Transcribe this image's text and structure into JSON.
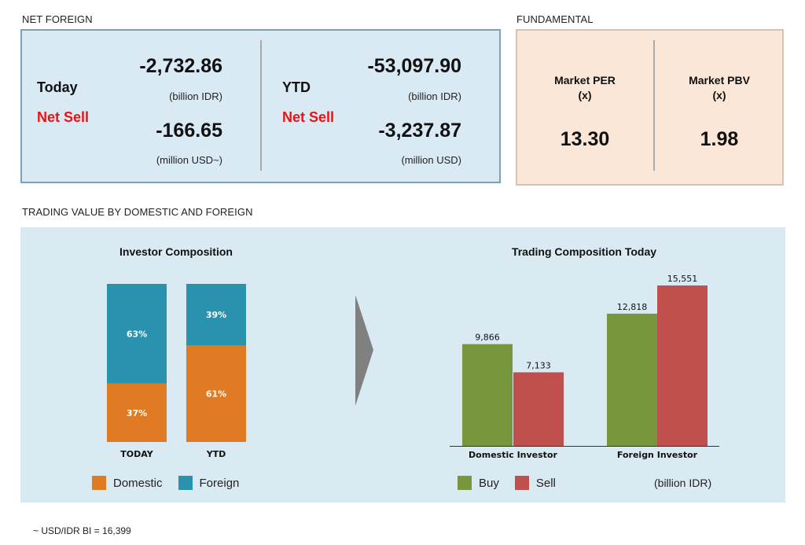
{
  "net_foreign": {
    "title": "NET FOREIGN",
    "today": {
      "label": "Today",
      "status": "Net Sell",
      "idr_value": "-2,732.86",
      "idr_unit": "(billion IDR)",
      "usd_value": "-166.65",
      "usd_unit": "(million USD~)"
    },
    "ytd": {
      "label": "YTD",
      "status": "Net Sell",
      "idr_value": "-53,097.90",
      "idr_unit": "(billion IDR)",
      "usd_value": "-3,237.87",
      "usd_unit": "(million USD)"
    }
  },
  "fundamental": {
    "title": "FUNDAMENTAL",
    "per": {
      "label": "Market PER",
      "unit": "(x)",
      "value": "13.30"
    },
    "pbv": {
      "label": "Market PBV",
      "unit": "(x)",
      "value": "1.98"
    }
  },
  "trading": {
    "title": "TRADING VALUE BY DOMESTIC AND FOREIGN",
    "unit_note": "(billion IDR)"
  },
  "footnote": "~ USD/IDR BI = 16,399",
  "colors": {
    "domestic": "#e07b24",
    "foreign": "#2b92ad",
    "buy": "#78963b",
    "sell": "#c0504d",
    "arrow": "#808080"
  },
  "chart_data": [
    {
      "type": "bar",
      "stacked": true,
      "title": "Investor Composition",
      "categories": [
        "TODAY",
        "YTD"
      ],
      "series": [
        {
          "name": "Domestic",
          "values": [
            37,
            61
          ],
          "labels": [
            "37%",
            "61%"
          ]
        },
        {
          "name": "Foreign",
          "values": [
            63,
            39
          ],
          "labels": [
            "63%",
            "39%"
          ]
        }
      ],
      "ylim": [
        0,
        100
      ],
      "legend": "bottom",
      "grid": false
    },
    {
      "type": "bar",
      "title": "Trading Composition Today",
      "categories": [
        "Domestic Investor",
        "Foreign Investor"
      ],
      "series": [
        {
          "name": "Buy",
          "values": [
            9866,
            12818
          ],
          "labels": [
            "9,866",
            "12,818"
          ]
        },
        {
          "name": "Sell",
          "values": [
            7133,
            15551
          ],
          "labels": [
            "7,133",
            "15,551"
          ]
        }
      ],
      "ylim": [
        0,
        15551
      ],
      "legend": "bottom",
      "grid": false
    }
  ]
}
